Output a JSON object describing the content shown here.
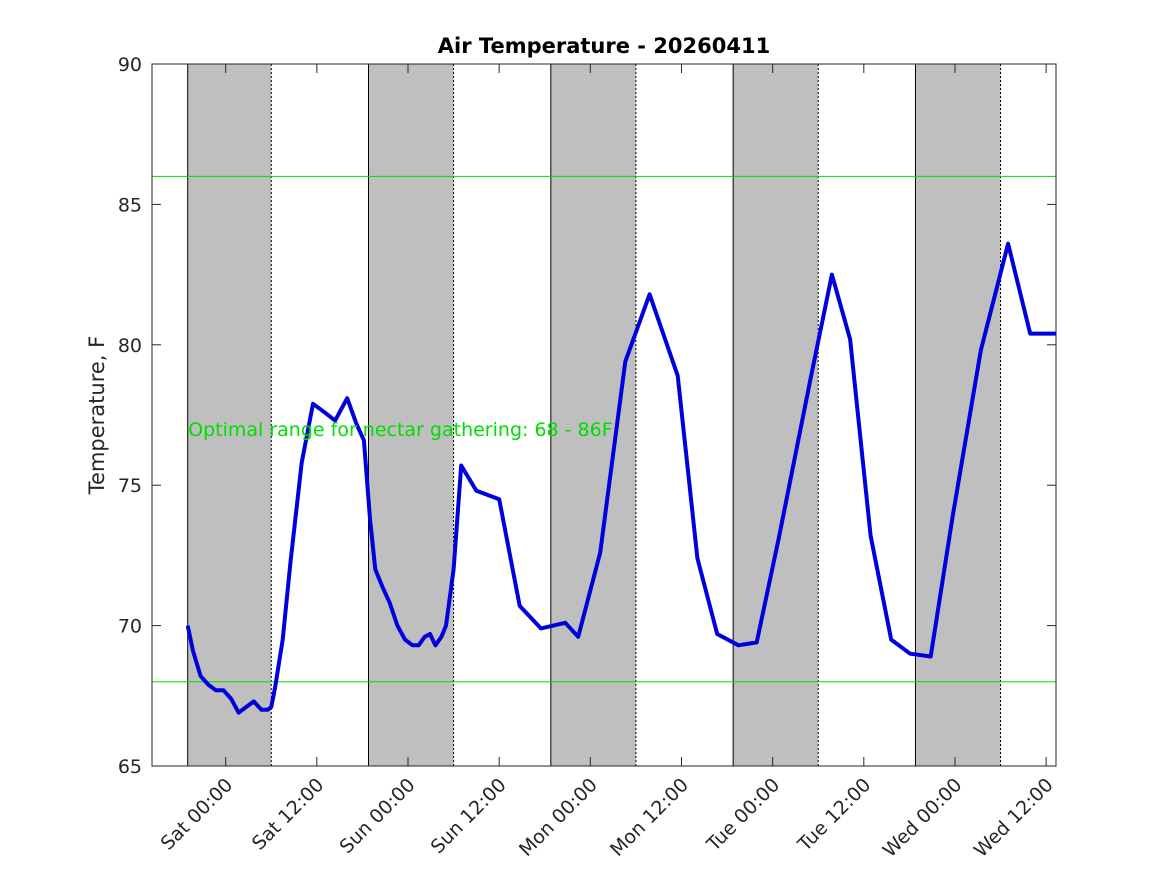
{
  "chart_data": {
    "type": "line",
    "title": "Air Temperature - 20260411",
    "xlabel": "",
    "ylabel": "Temperature, F",
    "ylim": [
      65,
      90
    ],
    "yticks": [
      65,
      70,
      75,
      80,
      85,
      90
    ],
    "xlim_hours": [
      -9.7,
      109.3
    ],
    "x_unit": "hours from Sat 00:00",
    "xtick_hours": [
      0,
      12,
      24,
      36,
      48,
      60,
      72,
      84,
      96,
      108
    ],
    "xtick_labels": [
      "Sat 00:00",
      "Sat 12:00",
      "Sun 00:00",
      "Sun 12:00",
      "Mon 00:00",
      "Mon 12:00",
      "Tue 00:00",
      "Tue 12:00",
      "Wed 00:00",
      "Wed 12:00"
    ],
    "night_bands_hours": [
      [
        -5,
        6
      ],
      [
        18.8,
        30
      ],
      [
        42.8,
        54
      ],
      [
        66.8,
        78
      ],
      [
        90.8,
        102
      ]
    ],
    "thresholds": {
      "low": 68,
      "high": 86,
      "color": "#00dd00"
    },
    "annotation": {
      "text": "Optimal range for nectar gathering: 68 - 86F",
      "x_hour": 23,
      "y": 77,
      "color": "#00dd00"
    },
    "series": [
      {
        "name": "Air Temperature",
        "color": "#0000dd",
        "x": [
          -5,
          -4.3,
          -3.3,
          -2.3,
          -1.3,
          -0.3,
          0.7,
          1.7,
          2.7,
          3.7,
          4.7,
          5.5,
          6,
          6.5,
          7.5,
          8.5,
          10,
          11.5,
          13,
          14.4,
          16,
          17.2,
          18.2,
          19,
          19.7,
          20.6,
          21.6,
          22.6,
          23.6,
          24.6,
          25.4,
          26.2,
          26.9,
          27.6,
          28.4,
          29,
          30,
          31,
          33,
          36,
          38.7,
          41.5,
          44.7,
          46.4,
          49.3,
          52.6,
          55.8,
          59.5,
          62.1,
          64.7,
          67.5,
          69.9,
          72.8,
          77,
          79.8,
          82.2,
          84.9,
          87.6,
          90.1,
          92.8,
          95.7,
          99.4,
          103,
          105.9,
          108.3,
          109.3
        ],
        "y": [
          70.0,
          69.1,
          68.2,
          67.9,
          67.7,
          67.7,
          67.4,
          66.9,
          67.1,
          67.3,
          67.0,
          67.0,
          67.1,
          67.8,
          69.5,
          72.2,
          75.8,
          77.9,
          77.6,
          77.3,
          78.1,
          77.2,
          76.6,
          73.8,
          72.0,
          71.4,
          70.8,
          70.0,
          69.5,
          69.3,
          69.3,
          69.6,
          69.7,
          69.3,
          69.6,
          70.0,
          72.0,
          75.7,
          74.8,
          74.5,
          70.7,
          69.9,
          70.1,
          69.6,
          72.6,
          79.4,
          81.8,
          78.9,
          72.4,
          69.7,
          69.3,
          69.4,
          73.1,
          78.8,
          82.5,
          80.2,
          73.2,
          69.5,
          69.0,
          68.9,
          73.9,
          79.8,
          83.6,
          80.4,
          80.4,
          80.4
        ]
      }
    ]
  }
}
